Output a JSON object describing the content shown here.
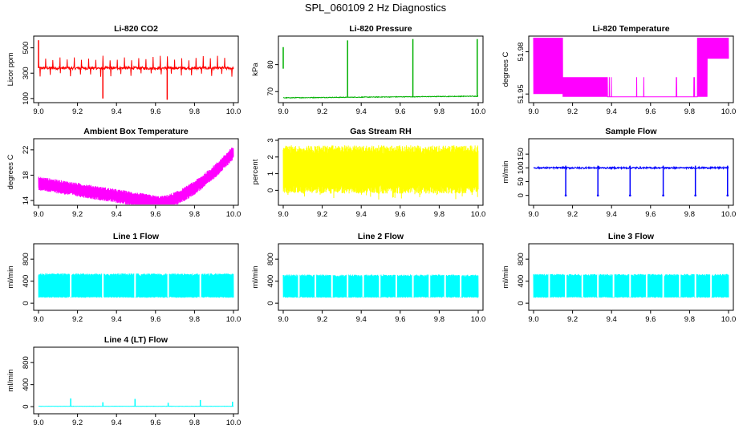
{
  "page": {
    "title": "SPL_060109  2 Hz Diagnostics"
  },
  "colors": {
    "red": "#ff0000",
    "green": "#00b000",
    "magenta": "#ff00ff",
    "yellow": "#ffff00",
    "blue": "#0000ff",
    "cyan": "#00ffff"
  },
  "chart_data": [
    {
      "id": "co2",
      "type": "line",
      "title": "Li-820 CO2",
      "ylabel": "Licor ppm",
      "color": "#ff0000",
      "xlim": [
        9.0,
        10.0
      ],
      "ylim": [
        80,
        580
      ],
      "xticks": [
        9.0,
        9.2,
        9.4,
        9.6,
        9.8,
        10.0
      ],
      "xticklabels": [
        "9.0",
        "9.2",
        "9.4",
        "9.6",
        "9.8",
        "10.0"
      ],
      "yticks": [
        100,
        300,
        500
      ],
      "yticklabels": [
        "100",
        "300",
        "500"
      ],
      "pattern": "co2",
      "baseline": 340,
      "band": 22,
      "spikes": [
        [
          9.0,
          560
        ],
        [
          9.33,
          100
        ],
        [
          9.66,
          90
        ]
      ]
    },
    {
      "id": "pressure",
      "type": "line",
      "title": "Li-820 Pressure",
      "ylabel": "kPa",
      "color": "#00b000",
      "xlim": [
        9.0,
        10.0
      ],
      "ylim": [
        66.5,
        90
      ],
      "xticks": [
        9.0,
        9.2,
        9.4,
        9.6,
        9.8,
        10.0
      ],
      "xticklabels": [
        "9.0",
        "9.2",
        "9.4",
        "9.6",
        "9.8",
        "10.0"
      ],
      "yticks": [
        70,
        80
      ],
      "yticklabels": [
        "70",
        "80"
      ],
      "pattern": "pressure",
      "baseline": 68.0,
      "spikes": [
        [
          9.33,
          89.0
        ],
        [
          9.665,
          89.5
        ],
        [
          9.995,
          89.5
        ]
      ]
    },
    {
      "id": "li820temp",
      "type": "line",
      "title": "Li-820 Temperature",
      "ylabel": "degrees C",
      "color": "#ff00ff",
      "xlim": [
        9.0,
        10.0
      ],
      "ylim": [
        51.945,
        51.99
      ],
      "xticks": [
        9.0,
        9.2,
        9.4,
        9.6,
        9.8,
        10.0
      ],
      "xticklabels": [
        "9.0",
        "9.2",
        "9.4",
        "9.6",
        "9.8",
        "10.0"
      ],
      "yticks": [
        51.95,
        51.98
      ],
      "yticklabels": [
        "51.95",
        "51.98"
      ],
      "pattern": "li820temp"
    },
    {
      "id": "ambient",
      "type": "line",
      "title": "Ambient Box Temperature",
      "ylabel": "degrees C",
      "color": "#ff00ff",
      "xlim": [
        9.0,
        10.0
      ],
      "ylim": [
        13.5,
        23.5
      ],
      "xticks": [
        9.0,
        9.2,
        9.4,
        9.6,
        9.8,
        10.0
      ],
      "xticklabels": [
        "9.0",
        "9.2",
        "9.4",
        "9.6",
        "9.8",
        "10.0"
      ],
      "yticks": [
        14,
        18,
        22
      ],
      "yticklabels": [
        "14",
        "18",
        "22"
      ],
      "pattern": "ambient"
    },
    {
      "id": "rh",
      "type": "line",
      "title": "Gas Stream RH",
      "ylabel": "percent",
      "color": "#ffff00",
      "xlim": [
        9.0,
        10.0
      ],
      "ylim": [
        -0.8,
        3.0
      ],
      "xticks": [
        9.0,
        9.2,
        9.4,
        9.6,
        9.8,
        10.0
      ],
      "xticklabels": [
        "9.0",
        "9.2",
        "9.4",
        "9.6",
        "9.8",
        "10.0"
      ],
      "yticks": [
        0,
        1,
        2,
        3
      ],
      "yticklabels": [
        "0",
        "1",
        "2",
        "3"
      ],
      "pattern": "rh"
    },
    {
      "id": "sampleflow",
      "type": "line",
      "title": "Sample Flow",
      "ylabel": "ml/min",
      "color": "#0000ff",
      "xlim": [
        9.0,
        10.0
      ],
      "ylim": [
        -30,
        200
      ],
      "xticks": [
        9.0,
        9.2,
        9.4,
        9.6,
        9.8,
        10.0
      ],
      "xticklabels": [
        "9.0",
        "9.2",
        "9.4",
        "9.6",
        "9.8",
        "10.0"
      ],
      "yticks": [
        0,
        50,
        100,
        150
      ],
      "yticklabels": [
        "0",
        "50",
        "100",
        "150"
      ],
      "pattern": "sampleflow",
      "baseline": 100,
      "dips": [
        9.165,
        9.33,
        9.495,
        9.665,
        9.83,
        9.995
      ]
    },
    {
      "id": "line1",
      "type": "area",
      "title": "Line 1 Flow",
      "ylabel": "ml/min",
      "color": "#00ffff",
      "xlim": [
        9.0,
        10.0
      ],
      "ylim": [
        -100,
        1050
      ],
      "xticks": [
        9.0,
        9.2,
        9.4,
        9.6,
        9.8,
        10.0
      ],
      "xticklabels": [
        "9.0",
        "9.2",
        "9.4",
        "9.6",
        "9.8",
        "10.0"
      ],
      "yticks": [
        0,
        400,
        800
      ],
      "yticklabels": [
        "0",
        "400",
        "800"
      ],
      "pattern": "lineflow",
      "low": 100,
      "high": 540,
      "gaps": [
        9.165,
        9.33,
        9.495,
        9.665,
        9.83
      ]
    },
    {
      "id": "line2",
      "type": "area",
      "title": "Line 2 Flow",
      "ylabel": "ml/min",
      "color": "#00ffff",
      "xlim": [
        9.0,
        10.0
      ],
      "ylim": [
        -100,
        1050
      ],
      "xticks": [
        9.0,
        9.2,
        9.4,
        9.6,
        9.8,
        10.0
      ],
      "xticklabels": [
        "9.0",
        "9.2",
        "9.4",
        "9.6",
        "9.8",
        "10.0"
      ],
      "yticks": [
        0,
        400,
        800
      ],
      "yticklabels": [
        "0",
        "400",
        "800"
      ],
      "pattern": "lineflow",
      "low": 100,
      "high": 520,
      "gaps": [
        9.08,
        9.165,
        9.25,
        9.33,
        9.41,
        9.495,
        9.58,
        9.665,
        9.75,
        9.83,
        9.91
      ]
    },
    {
      "id": "line3",
      "type": "area",
      "title": "Line 3 Flow",
      "ylabel": "ml/min",
      "color": "#00ffff",
      "xlim": [
        9.0,
        10.0
      ],
      "ylim": [
        -100,
        1050
      ],
      "xticks": [
        9.0,
        9.2,
        9.4,
        9.6,
        9.8,
        10.0
      ],
      "xticklabels": [
        "9.0",
        "9.2",
        "9.4",
        "9.6",
        "9.8",
        "10.0"
      ],
      "yticks": [
        0,
        400,
        800
      ],
      "yticklabels": [
        "0",
        "400",
        "800"
      ],
      "pattern": "lineflow",
      "low": 100,
      "high": 530,
      "gaps": [
        9.08,
        9.165,
        9.25,
        9.33,
        9.41,
        9.495,
        9.58,
        9.665,
        9.75,
        9.83,
        9.91
      ]
    },
    {
      "id": "line4",
      "type": "line",
      "title": "Line 4 (LT) Flow",
      "ylabel": "ml/min",
      "color": "#00ffff",
      "xlim": [
        9.0,
        10.0
      ],
      "ylim": [
        -100,
        1050
      ],
      "xticks": [
        9.0,
        9.2,
        9.4,
        9.6,
        9.8,
        10.0
      ],
      "xticklabels": [
        "9.0",
        "9.2",
        "9.4",
        "9.6",
        "9.8",
        "10.0"
      ],
      "yticks": [
        0,
        400,
        800
      ],
      "yticklabels": [
        "0",
        "400",
        "800"
      ],
      "pattern": "line4",
      "baseline": 5,
      "spikes": [
        [
          9.165,
          150
        ],
        [
          9.33,
          80
        ],
        [
          9.495,
          140
        ],
        [
          9.665,
          70
        ],
        [
          9.83,
          120
        ],
        [
          9.995,
          90
        ]
      ]
    }
  ]
}
